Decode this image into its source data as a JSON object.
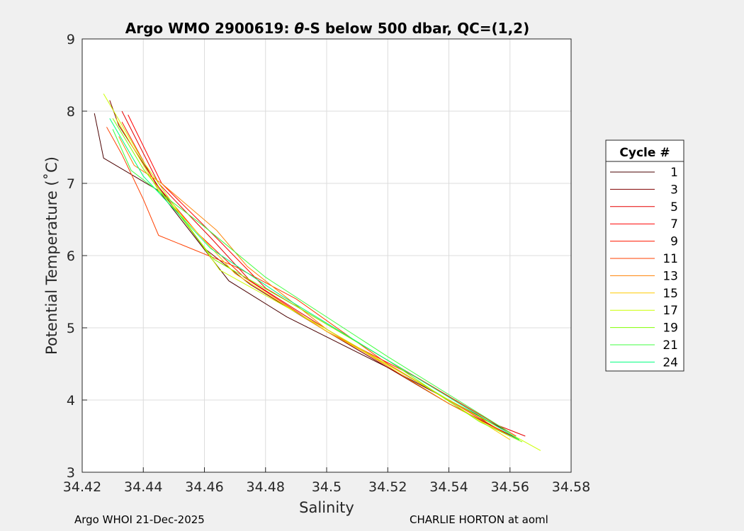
{
  "chart_data": {
    "type": "line",
    "title_prefix": "Argo WMO 2900619: ",
    "title_theta": "θ",
    "title_suffix": "-S below 500 dbar,  QC=(1,2)",
    "xlabel": "Salinity",
    "ylabel": "Potential Temperature (˚C)",
    "xlim": [
      34.42,
      34.58
    ],
    "ylim": [
      3,
      9
    ],
    "xticks": [
      "34.42",
      "34.44",
      "34.46",
      "34.48",
      "34.5",
      "34.52",
      "34.54",
      "34.56",
      "34.58"
    ],
    "yticks": [
      "3",
      "4",
      "5",
      "6",
      "7",
      "8",
      "9"
    ],
    "grid": true,
    "legend_title": "Cycle #",
    "legend_placement": "right-outside",
    "series": [
      {
        "name": "1",
        "color": "#4a0000",
        "points": [
          [
            34.424,
            7.97
          ],
          [
            34.427,
            7.35
          ],
          [
            34.445,
            6.9
          ],
          [
            34.468,
            5.65
          ],
          [
            34.487,
            5.15
          ],
          [
            34.52,
            4.45
          ],
          [
            34.56,
            3.55
          ]
        ]
      },
      {
        "name": "3",
        "color": "#800000",
        "points": [
          [
            34.429,
            8.15
          ],
          [
            34.432,
            7.8
          ],
          [
            34.445,
            6.95
          ],
          [
            34.46,
            6.1
          ],
          [
            34.475,
            5.6
          ],
          [
            34.5,
            4.95
          ],
          [
            34.54,
            3.95
          ],
          [
            34.563,
            3.45
          ]
        ]
      },
      {
        "name": "5",
        "color": "#e60000",
        "points": [
          [
            34.433,
            8.0
          ],
          [
            34.445,
            7.0
          ],
          [
            34.462,
            6.25
          ],
          [
            34.475,
            5.65
          ],
          [
            34.5,
            4.98
          ],
          [
            34.55,
            3.75
          ],
          [
            34.565,
            3.5
          ]
        ]
      },
      {
        "name": "7",
        "color": "#ff0000",
        "points": [
          [
            34.435,
            7.95
          ],
          [
            34.446,
            7.0
          ],
          [
            34.465,
            6.2
          ],
          [
            34.48,
            5.55
          ],
          [
            34.52,
            4.55
          ],
          [
            34.56,
            3.55
          ]
        ]
      },
      {
        "name": "9",
        "color": "#ff1a00",
        "points": [
          [
            34.433,
            7.85
          ],
          [
            34.444,
            7.0
          ],
          [
            34.458,
            6.3
          ],
          [
            34.473,
            5.7
          ],
          [
            34.5,
            4.95
          ],
          [
            34.53,
            4.3
          ],
          [
            34.562,
            3.5
          ]
        ]
      },
      {
        "name": "11",
        "color": "#ff4000",
        "points": [
          [
            34.428,
            7.78
          ],
          [
            34.433,
            7.4
          ],
          [
            34.44,
            6.78
          ],
          [
            34.445,
            6.28
          ],
          [
            34.47,
            5.85
          ],
          [
            34.49,
            5.4
          ],
          [
            34.52,
            4.5
          ],
          [
            34.56,
            3.5
          ]
        ]
      },
      {
        "name": "13",
        "color": "#ff8000",
        "points": [
          [
            34.432,
            7.65
          ],
          [
            34.437,
            7.25
          ],
          [
            34.446,
            7.0
          ],
          [
            34.464,
            6.35
          ],
          [
            34.474,
            5.85
          ],
          [
            34.5,
            4.98
          ],
          [
            34.54,
            3.95
          ],
          [
            34.56,
            3.5
          ]
        ]
      },
      {
        "name": "15",
        "color": "#ffcc00",
        "points": [
          [
            34.431,
            7.9
          ],
          [
            34.445,
            6.9
          ],
          [
            34.47,
            5.75
          ],
          [
            34.5,
            4.95
          ],
          [
            34.53,
            4.25
          ],
          [
            34.56,
            3.45
          ]
        ]
      },
      {
        "name": "17",
        "color": "#ccff00",
        "points": [
          [
            34.427,
            8.24
          ],
          [
            34.44,
            7.3
          ],
          [
            34.465,
            5.8
          ],
          [
            34.5,
            4.98
          ],
          [
            34.54,
            4.0
          ],
          [
            34.57,
            3.3
          ]
        ]
      },
      {
        "name": "19",
        "color": "#80ff00",
        "points": [
          [
            34.43,
            7.9
          ],
          [
            34.44,
            7.2
          ],
          [
            34.463,
            5.95
          ],
          [
            34.49,
            5.3
          ],
          [
            34.52,
            4.55
          ],
          [
            34.55,
            3.7
          ],
          [
            34.564,
            3.42
          ]
        ]
      },
      {
        "name": "21",
        "color": "#40ff40",
        "points": [
          [
            34.43,
            7.75
          ],
          [
            34.436,
            7.18
          ],
          [
            34.46,
            6.4
          ],
          [
            34.48,
            5.7
          ],
          [
            34.52,
            4.6
          ],
          [
            34.56,
            3.55
          ]
        ]
      },
      {
        "name": "24",
        "color": "#00ff80",
        "points": [
          [
            34.429,
            7.9
          ],
          [
            34.44,
            7.1
          ],
          [
            34.462,
            6.1
          ],
          [
            34.485,
            5.45
          ],
          [
            34.52,
            4.55
          ],
          [
            34.563,
            3.45
          ]
        ]
      }
    ]
  },
  "footer": {
    "left": "Argo WHOI 21-Dec-2025",
    "right": "CHARLIE HORTON at aoml"
  }
}
